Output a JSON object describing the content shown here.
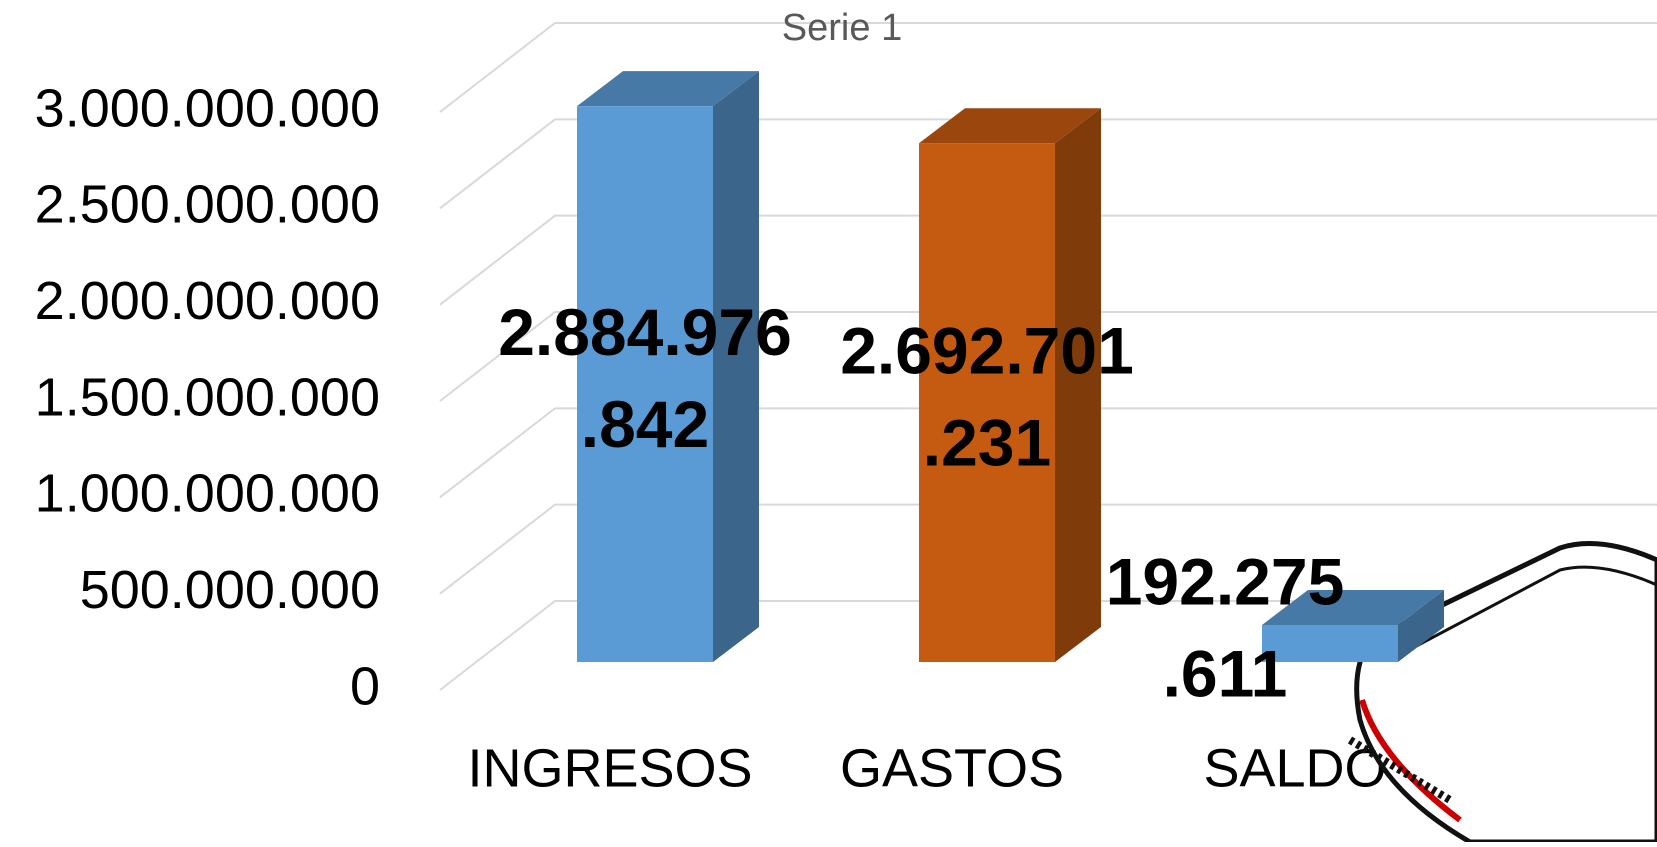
{
  "chart_data": {
    "type": "bar3d",
    "title": "Serie 1",
    "categories": [
      "INGRESOS",
      "GASTOS",
      "SALDO"
    ],
    "values": [
      2884976842,
      2692701231,
      192275611
    ],
    "value_labels": [
      "2.884.976.842",
      "2.692.701.231",
      "192.275.611"
    ],
    "colors": [
      "#5b9bd5",
      "#c55a11",
      "#5b9bd5"
    ],
    "ylim": [
      0,
      3000000000
    ],
    "yticks": [
      {
        "value": 0,
        "label": "0"
      },
      {
        "value": 500000000,
        "label": "500.000.000"
      },
      {
        "value": 1000000000,
        "label": "1.000.000.000"
      },
      {
        "value": 1500000000,
        "label": "1.500.000.000"
      },
      {
        "value": 2000000000,
        "label": "2.000.000.000"
      },
      {
        "value": 2500000000,
        "label": "2.500.000.000"
      },
      {
        "value": 3000000000,
        "label": "3.000.000.000"
      }
    ],
    "grid": true
  }
}
